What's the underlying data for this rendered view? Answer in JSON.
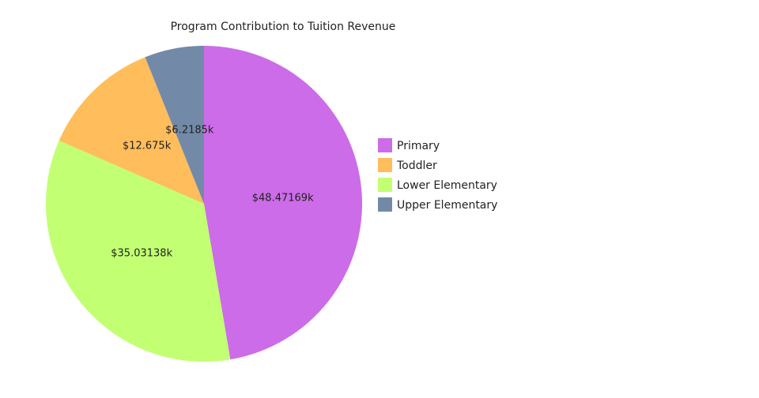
{
  "chart_data": {
    "type": "pie",
    "title": "Program Contribution to Tuition Revenue",
    "slices": [
      {
        "label": "Primary",
        "value": 48.47169,
        "display": "$48.47169k",
        "color": "#cc6ce8"
      },
      {
        "label": "Lower Elementary",
        "value": 35.03138,
        "display": "$35.03138k",
        "color": "#c2ff73"
      },
      {
        "label": "Toddler",
        "value": 12.675,
        "display": "$12.675k",
        "color": "#ffbd5c"
      },
      {
        "label": "Upper Elementary",
        "value": 6.2185,
        "display": "$6.2185k",
        "color": "#728aa8"
      }
    ],
    "legend": [
      "Primary",
      "Toddler",
      "Lower Elementary",
      "Upper Elementary"
    ],
    "legend_position": "right",
    "start_angle": "top",
    "direction": "clockwise"
  }
}
